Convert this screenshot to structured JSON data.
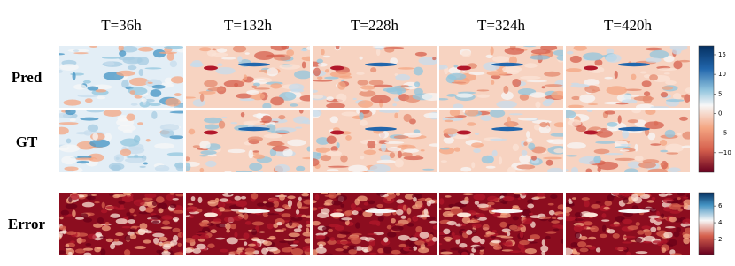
{
  "columns": [
    "T=36h",
    "T=132h",
    "T=228h",
    "T=324h",
    "T=420h"
  ],
  "rows": [
    "Pred",
    "GT",
    "Error"
  ],
  "colorbars": [
    {
      "lim": [
        -15,
        17.25
      ],
      "ticks": [
        15,
        10,
        5,
        0,
        {
          "value": -5,
          "label": "−5"
        },
        {
          "value": -10,
          "label": "−10"
        }
      ]
    },
    {
      "lim": [
        0.2,
        7.6
      ],
      "ticks": [
        6,
        4,
        2
      ]
    }
  ]
}
